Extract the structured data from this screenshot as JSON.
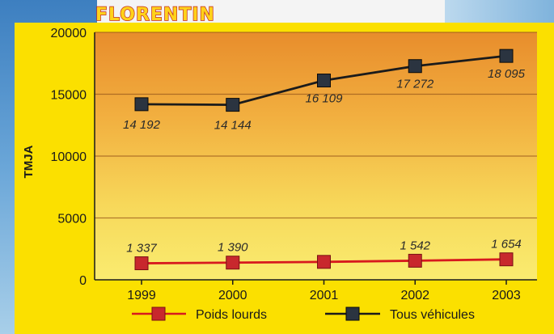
{
  "chart_data": {
    "type": "line",
    "title": "FLORENTIN",
    "xlabel": "",
    "ylabel": "TMJA",
    "categories": [
      "1999",
      "2000",
      "2001",
      "2002",
      "2003"
    ],
    "ylim": [
      0,
      20000
    ],
    "yticks": [
      "0",
      "5000",
      "10000",
      "15000",
      "20000"
    ],
    "grid": true,
    "legend_position": "bottom",
    "series": [
      {
        "name": "Poids lourds",
        "values": [
          1337,
          1390,
          1450,
          1542,
          1654
        ],
        "labels": [
          "1 337",
          "1 390",
          "",
          "1 542",
          "1 654"
        ],
        "color": "#d7191e",
        "marker_fill": "#c8282d"
      },
      {
        "name": "Tous véhicules",
        "values": [
          14192,
          14144,
          16109,
          17272,
          18095
        ],
        "labels": [
          "14 192",
          "14 144",
          "16 109",
          "17 272",
          "18 095"
        ],
        "color": "#1b1b1b",
        "marker_fill": "#2b3440"
      }
    ]
  }
}
